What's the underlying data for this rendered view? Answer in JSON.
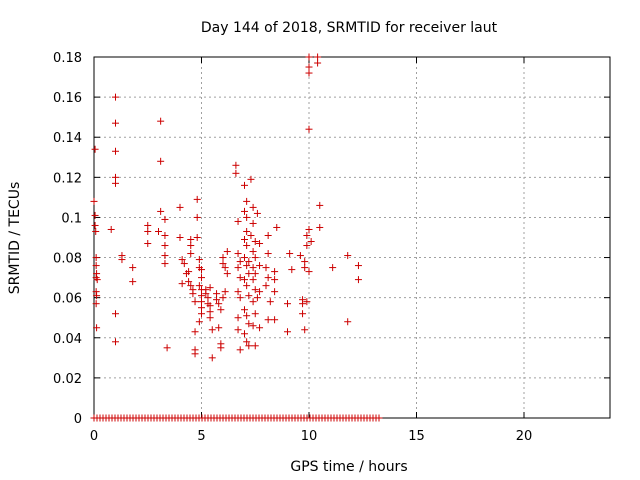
{
  "chart_data": {
    "type": "scatter",
    "title": "Day 144 of 2018, SRMTID for receiver laut",
    "xlabel": "GPS time / hours",
    "ylabel": "SRMTID / TECUs",
    "xlim": [
      0,
      24
    ],
    "ylim": [
      0,
      0.18
    ],
    "xticks": [
      0,
      5,
      10,
      15,
      20
    ],
    "xtick_labels": [
      "0",
      "5",
      "10",
      "15",
      "20"
    ],
    "yticks": [
      0,
      0.02,
      0.04,
      0.06,
      0.08,
      0.1,
      0.12,
      0.14,
      0.16,
      0.18
    ],
    "ytick_labels": [
      "0",
      "0.02",
      "0.04",
      "0.06",
      "0.08",
      "0.1",
      "0.12",
      "0.14",
      "0.16",
      "0.18"
    ],
    "grid": true,
    "marker": "+",
    "color": "#cc0000",
    "series": [
      {
        "name": "SRMTID",
        "points": [
          [
            0.0,
            0.108
          ],
          [
            0.05,
            0.134
          ],
          [
            0.05,
            0.101
          ],
          [
            0.05,
            0.096
          ],
          [
            0.08,
            0.093
          ],
          [
            0.1,
            0.08
          ],
          [
            0.1,
            0.076
          ],
          [
            0.12,
            0.072
          ],
          [
            0.1,
            0.07
          ],
          [
            0.15,
            0.069
          ],
          [
            0.1,
            0.063
          ],
          [
            0.12,
            0.061
          ],
          [
            0.1,
            0.057
          ],
          [
            0.12,
            0.045
          ],
          [
            1.0,
            0.16
          ],
          [
            1.0,
            0.147
          ],
          [
            1.0,
            0.133
          ],
          [
            1.0,
            0.12
          ],
          [
            1.0,
            0.117
          ],
          [
            1.0,
            0.052
          ],
          [
            1.0,
            0.038
          ],
          [
            0.8,
            0.094
          ],
          [
            1.3,
            0.081
          ],
          [
            1.3,
            0.079
          ],
          [
            1.8,
            0.075
          ],
          [
            1.8,
            0.068
          ],
          [
            2.5,
            0.096
          ],
          [
            2.5,
            0.093
          ],
          [
            2.5,
            0.087
          ],
          [
            3.1,
            0.148
          ],
          [
            3.1,
            0.128
          ],
          [
            3.1,
            0.103
          ],
          [
            3.0,
            0.093
          ],
          [
            3.3,
            0.099
          ],
          [
            3.3,
            0.091
          ],
          [
            3.3,
            0.086
          ],
          [
            3.3,
            0.081
          ],
          [
            3.3,
            0.077
          ],
          [
            3.4,
            0.035
          ],
          [
            4.0,
            0.105
          ],
          [
            4.0,
            0.09
          ],
          [
            4.1,
            0.079
          ],
          [
            4.2,
            0.077
          ],
          [
            4.1,
            0.067
          ],
          [
            4.3,
            0.072
          ],
          [
            4.4,
            0.073
          ],
          [
            4.5,
            0.089
          ],
          [
            4.5,
            0.086
          ],
          [
            4.5,
            0.082
          ],
          [
            4.4,
            0.068
          ],
          [
            4.5,
            0.066
          ],
          [
            4.6,
            0.064
          ],
          [
            4.6,
            0.062
          ],
          [
            4.7,
            0.058
          ],
          [
            4.7,
            0.043
          ],
          [
            4.7,
            0.034
          ],
          [
            4.7,
            0.032
          ],
          [
            4.8,
            0.109
          ],
          [
            4.8,
            0.1
          ],
          [
            4.8,
            0.09
          ],
          [
            4.9,
            0.079
          ],
          [
            4.9,
            0.075
          ],
          [
            5.0,
            0.074
          ],
          [
            5.0,
            0.07
          ],
          [
            4.9,
            0.066
          ],
          [
            5.0,
            0.064
          ],
          [
            5.0,
            0.061
          ],
          [
            5.0,
            0.058
          ],
          [
            5.0,
            0.055
          ],
          [
            5.0,
            0.052
          ],
          [
            4.9,
            0.048
          ],
          [
            5.2,
            0.064
          ],
          [
            5.2,
            0.062
          ],
          [
            5.3,
            0.06
          ],
          [
            5.3,
            0.057
          ],
          [
            5.4,
            0.065
          ],
          [
            5.4,
            0.056
          ],
          [
            5.4,
            0.053
          ],
          [
            5.4,
            0.05
          ],
          [
            5.5,
            0.044
          ],
          [
            5.5,
            0.03
          ],
          [
            5.7,
            0.062
          ],
          [
            5.7,
            0.059
          ],
          [
            5.8,
            0.057
          ],
          [
            5.9,
            0.054
          ],
          [
            6.0,
            0.06
          ],
          [
            5.8,
            0.045
          ],
          [
            5.9,
            0.037
          ],
          [
            5.9,
            0.035
          ],
          [
            6.0,
            0.08
          ],
          [
            6.0,
            0.077
          ],
          [
            6.1,
            0.075
          ],
          [
            6.2,
            0.072
          ],
          [
            6.1,
            0.063
          ],
          [
            6.2,
            0.083
          ],
          [
            6.6,
            0.126
          ],
          [
            6.6,
            0.122
          ],
          [
            6.7,
            0.098
          ],
          [
            6.7,
            0.082
          ],
          [
            6.8,
            0.078
          ],
          [
            6.7,
            0.075
          ],
          [
            6.8,
            0.07
          ],
          [
            6.7,
            0.063
          ],
          [
            6.8,
            0.06
          ],
          [
            6.7,
            0.05
          ],
          [
            6.7,
            0.044
          ],
          [
            6.8,
            0.034
          ],
          [
            7.0,
            0.116
          ],
          [
            7.1,
            0.108
          ],
          [
            7.0,
            0.103
          ],
          [
            7.1,
            0.1
          ],
          [
            7.1,
            0.093
          ],
          [
            7.0,
            0.089
          ],
          [
            7.1,
            0.086
          ],
          [
            7.0,
            0.08
          ],
          [
            7.2,
            0.078
          ],
          [
            7.1,
            0.076
          ],
          [
            7.2,
            0.072
          ],
          [
            7.0,
            0.069
          ],
          [
            7.1,
            0.066
          ],
          [
            7.2,
            0.061
          ],
          [
            7.0,
            0.054
          ],
          [
            7.1,
            0.051
          ],
          [
            7.2,
            0.047
          ],
          [
            7.0,
            0.042
          ],
          [
            7.1,
            0.038
          ],
          [
            7.2,
            0.036
          ],
          [
            7.3,
            0.119
          ],
          [
            7.4,
            0.105
          ],
          [
            7.4,
            0.097
          ],
          [
            7.3,
            0.091
          ],
          [
            7.5,
            0.088
          ],
          [
            7.4,
            0.083
          ],
          [
            7.5,
            0.08
          ],
          [
            7.4,
            0.075
          ],
          [
            7.5,
            0.072
          ],
          [
            7.4,
            0.069
          ],
          [
            7.5,
            0.064
          ],
          [
            7.4,
            0.058
          ],
          [
            7.5,
            0.052
          ],
          [
            7.4,
            0.046
          ],
          [
            7.5,
            0.036
          ],
          [
            7.6,
            0.102
          ],
          [
            7.7,
            0.087
          ],
          [
            7.7,
            0.076
          ],
          [
            7.7,
            0.063
          ],
          [
            7.6,
            0.06
          ],
          [
            7.7,
            0.045
          ],
          [
            8.1,
            0.091
          ],
          [
            8.1,
            0.082
          ],
          [
            8.0,
            0.075
          ],
          [
            8.1,
            0.07
          ],
          [
            8.0,
            0.066
          ],
          [
            8.2,
            0.058
          ],
          [
            8.1,
            0.049
          ],
          [
            8.5,
            0.095
          ],
          [
            8.4,
            0.073
          ],
          [
            8.4,
            0.069
          ],
          [
            8.4,
            0.063
          ],
          [
            8.4,
            0.049
          ],
          [
            9.1,
            0.082
          ],
          [
            9.2,
            0.074
          ],
          [
            9.0,
            0.057
          ],
          [
            9.0,
            0.043
          ],
          [
            9.6,
            0.081
          ],
          [
            9.7,
            0.059
          ],
          [
            9.7,
            0.057
          ],
          [
            9.7,
            0.052
          ],
          [
            9.8,
            0.044
          ],
          [
            9.8,
            0.078
          ],
          [
            9.8,
            0.075
          ],
          [
            10.0,
            0.18
          ],
          [
            10.0,
            0.175
          ],
          [
            10.0,
            0.172
          ],
          [
            10.0,
            0.144
          ],
          [
            10.0,
            0.094
          ],
          [
            9.9,
            0.091
          ],
          [
            10.1,
            0.088
          ],
          [
            9.9,
            0.086
          ],
          [
            10.0,
            0.073
          ],
          [
            9.9,
            0.058
          ],
          [
            10.4,
            0.18
          ],
          [
            10.4,
            0.177
          ],
          [
            10.5,
            0.106
          ],
          [
            10.5,
            0.095
          ],
          [
            11.1,
            0.075
          ],
          [
            11.8,
            0.081
          ],
          [
            11.8,
            0.048
          ],
          [
            12.3,
            0.076
          ],
          [
            12.3,
            0.069
          ]
        ],
        "zero_band": {
          "x_start": 0,
          "x_end": 13.3,
          "y": 0
        }
      }
    ]
  }
}
